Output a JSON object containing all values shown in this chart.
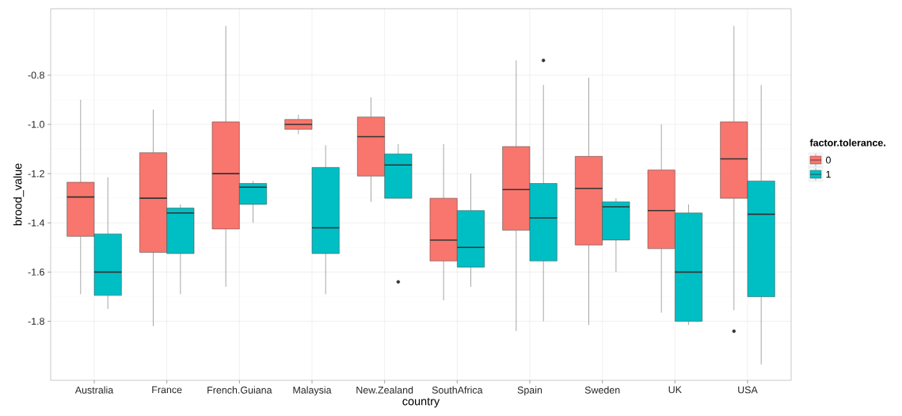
{
  "chart_data": {
    "type": "box",
    "xlabel": "country",
    "ylabel": "brood_value",
    "legend_title": "factor.tolerance.",
    "legend": "right",
    "grid": true,
    "categories": [
      "Australia",
      "France",
      "French.Guiana",
      "Malaysia",
      "New.Zealand",
      "SouthAfrica",
      "Spain",
      "Sweden",
      "UK",
      "USA"
    ],
    "ylim": [
      -2.04,
      -0.53
    ],
    "yticks": [
      {
        "value": -1.8,
        "label": "-1.8"
      },
      {
        "value": -1.6,
        "label": "-1.6"
      },
      {
        "value": -1.4,
        "label": "-1.4"
      },
      {
        "value": -1.2,
        "label": "-1.2"
      },
      {
        "value": -1.0,
        "label": "-1.0"
      },
      {
        "value": -0.8,
        "label": "-0.8"
      }
    ],
    "series": [
      {
        "name": "0",
        "color": "#f8766d",
        "boxes": [
          {
            "low": -1.69,
            "q1": -1.455,
            "median": -1.295,
            "q3": -1.235,
            "high": -0.9
          },
          {
            "low": -1.82,
            "q1": -1.52,
            "median": -1.3,
            "q3": -1.115,
            "high": -0.94
          },
          {
            "low": -1.66,
            "q1": -1.425,
            "median": -1.2,
            "q3": -0.99,
            "high": -0.6
          },
          {
            "low": -1.04,
            "q1": -1.02,
            "median": -1.0,
            "q3": -0.98,
            "high": -0.96
          },
          {
            "low": -1.315,
            "q1": -1.21,
            "median": -1.05,
            "q3": -0.97,
            "high": -0.89
          },
          {
            "low": -1.715,
            "q1": -1.555,
            "median": -1.47,
            "q3": -1.3,
            "high": -1.08
          },
          {
            "low": -1.84,
            "q1": -1.43,
            "median": -1.265,
            "q3": -1.09,
            "high": -0.74
          },
          {
            "low": -1.815,
            "q1": -1.49,
            "median": -1.26,
            "q3": -1.13,
            "high": -0.81
          },
          {
            "low": -1.765,
            "q1": -1.505,
            "median": -1.35,
            "q3": -1.185,
            "high": -1.0
          },
          {
            "low": -1.755,
            "q1": -1.3,
            "median": -1.14,
            "q3": -0.99,
            "high": -0.6,
            "outliers": [
              -1.84
            ]
          }
        ]
      },
      {
        "name": "1",
        "color": "#00bfc4",
        "boxes": [
          {
            "low": -1.75,
            "q1": -1.695,
            "median": -1.6,
            "q3": -1.445,
            "high": -1.215
          },
          {
            "low": -1.69,
            "q1": -1.525,
            "median": -1.36,
            "q3": -1.34,
            "high": -1.325
          },
          {
            "low": -1.4,
            "q1": -1.325,
            "median": -1.255,
            "q3": -1.24,
            "high": -1.23
          },
          {
            "low": -1.69,
            "q1": -1.525,
            "median": -1.42,
            "q3": -1.175,
            "high": -1.085
          },
          {
            "low": -1.3,
            "q1": -1.3,
            "median": -1.165,
            "q3": -1.12,
            "high": -1.08,
            "outliers": [
              -1.64
            ]
          },
          {
            "low": -1.66,
            "q1": -1.58,
            "median": -1.5,
            "q3": -1.35,
            "high": -1.2
          },
          {
            "low": -1.8,
            "q1": -1.555,
            "median": -1.38,
            "q3": -1.24,
            "high": -0.84,
            "outliers": [
              -0.74
            ]
          },
          {
            "low": -1.6,
            "q1": -1.47,
            "median": -1.335,
            "q3": -1.315,
            "high": -1.3
          },
          {
            "low": -1.815,
            "q1": -1.8,
            "median": -1.6,
            "q3": -1.36,
            "high": -1.325
          },
          {
            "low": -1.975,
            "q1": -1.7,
            "median": -1.365,
            "q3": -1.23,
            "high": -0.84
          }
        ]
      }
    ]
  }
}
